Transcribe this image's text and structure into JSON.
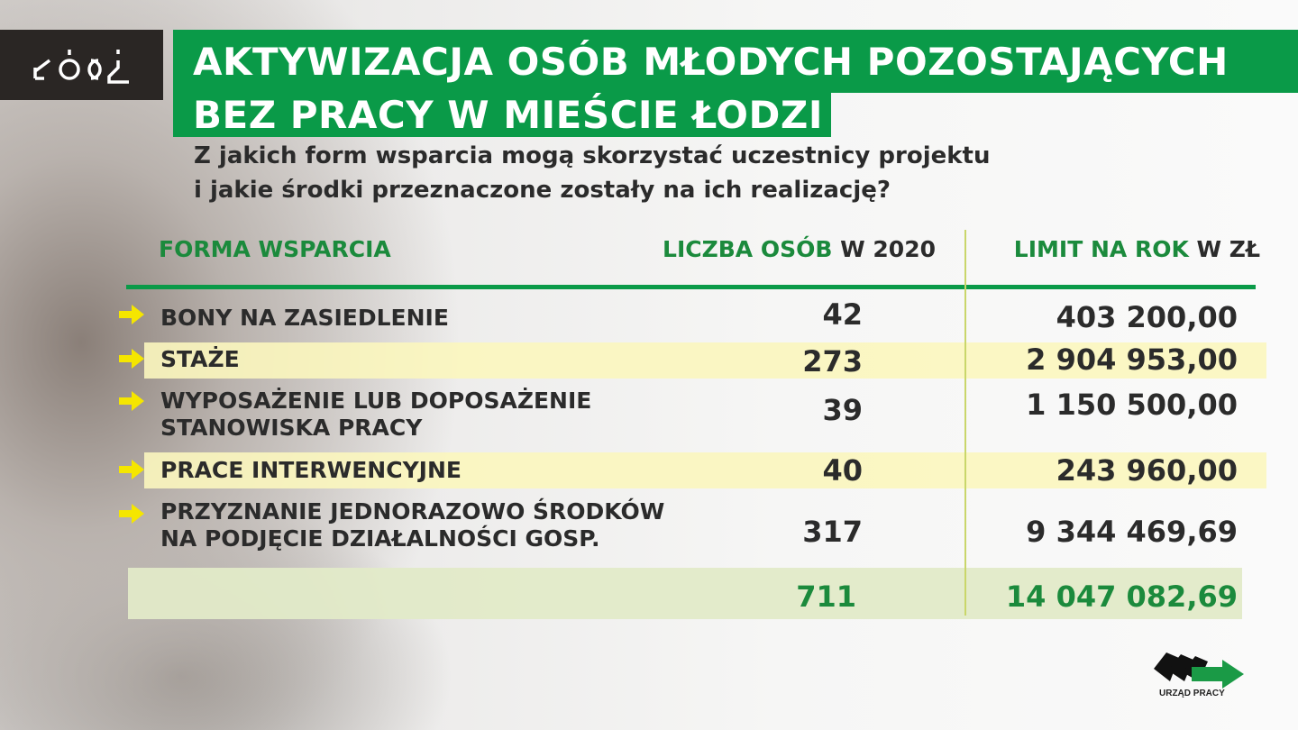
{
  "logo": {
    "text": "ŁÓDŹ"
  },
  "title": {
    "line1": "AKTYWIZACJA OSÓB MŁODYCH POZOSTAJĄCYCH",
    "line2": "BEZ PRACY W MIEŚCIE ŁODZI"
  },
  "subtitle": {
    "line1": "Z jakich form wsparcia mogą skorzystać uczestnicy projektu",
    "line2": "i jakie środki przeznaczone zostały na ich realizację?"
  },
  "headers": {
    "form": "FORMA WSPARCIA",
    "count_a": "LICZBA OSÓB",
    "count_b": " W 2020",
    "limit_a": "LIMIT NA ROK",
    "limit_b": " W ZŁ"
  },
  "rows": [
    {
      "label1": "BONY NA ZASIEDLENIE",
      "label2": "",
      "count": "42",
      "limit": "403 200,00"
    },
    {
      "label1": "STAŻE",
      "label2": "",
      "count": "273",
      "limit": "2 904 953,00"
    },
    {
      "label1": "WYPOSAŻENIE LUB DOPOSAŻENIE",
      "label2": "STANOWISKA PRACY",
      "count": "39",
      "limit": "1 150 500,00"
    },
    {
      "label1": "PRACE INTERWENCYJNE",
      "label2": "",
      "count": "40",
      "limit": "243 960,00"
    },
    {
      "label1": "PRZYZNANIE JEDNORAZOWO ŚRODKÓW",
      "label2": "NA PODJĘCIE DZIAŁALNOŚCI GOSP.",
      "count": "317",
      "limit": "9 344 469,69"
    }
  ],
  "total": {
    "count": "711",
    "limit": "14 047 082,69"
  },
  "footer_logo": {
    "text": "URZĄD PRACY"
  },
  "colors": {
    "green": "#0a9a48",
    "header_green": "#1b8a3c",
    "arrow": "#f5e600",
    "highlight": "#fbf6be"
  }
}
